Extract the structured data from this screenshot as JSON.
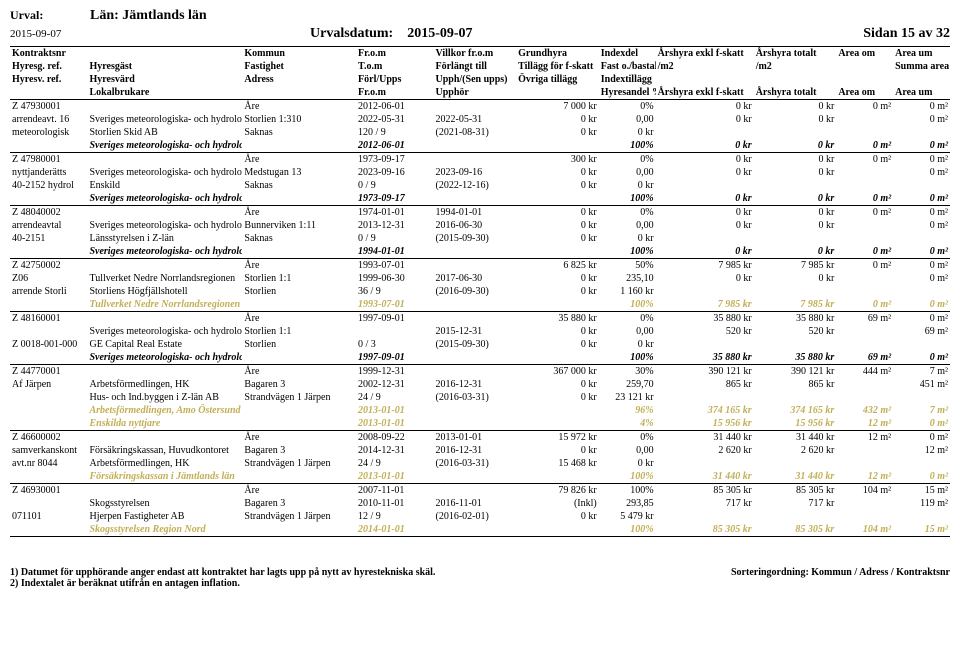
{
  "header": {
    "urval_label": "Urval:",
    "urval_value": "Län: Jämtlands län",
    "date_left": "2015-09-07",
    "urvalsdatum_label": "Urvalsdatum:",
    "urvalsdatum_value": "2015-09-07",
    "page_label": "Sidan 15 av 32"
  },
  "colwidths": [
    "75",
    "150",
    "110",
    "75",
    "80",
    "80",
    "55",
    "95",
    "80",
    "55",
    "55"
  ],
  "columns_row1": [
    "Kontraktsnr",
    "",
    "Kommun",
    "Fr.o.m",
    "Villkor fr.o.m",
    "Grundhyra",
    "Indexdel",
    "Årshyra exkl f-skatt",
    "Årshyra totalt",
    "Area om",
    "Area um"
  ],
  "columns_row2": [
    "Hyresg. ref.",
    "Hyresgäst",
    "Fastighet",
    "T.o.m",
    "Förlängt till",
    "Tillägg för f-skatt",
    "Fast o./bastal",
    "/m2",
    "/m2",
    "",
    "Summa area"
  ],
  "columns_row3": [
    "Hyresv. ref.",
    "Hyresvärd",
    "Adress",
    "Förl/Upps",
    "Upph/(Sen upps)",
    "Övriga tillägg",
    "Indextillägg",
    "",
    "",
    "",
    ""
  ],
  "columns_row4_italic": [
    "",
    "Lokalbrukare",
    "",
    "Fr.o.m",
    "Upphör",
    "",
    "Hyresandel %",
    "Årshyra exkl f-skatt",
    "Årshyra totalt",
    "Area om",
    "Area um"
  ],
  "num_cols": [
    5,
    6,
    7,
    8,
    9,
    10
  ],
  "groups": [
    {
      "rows": [
        [
          "Z 47930001",
          "",
          "Åre",
          "2012-06-01",
          "",
          "7 000 kr",
          "0%",
          "0 kr",
          "0 kr",
          "0 m²",
          "0 m²"
        ],
        [
          "arrendeavt. 16",
          "Sveriges meteorologiska- och hydrologisk",
          "Storlien 1:310",
          "2022-05-31",
          "2022-05-31",
          "0 kr",
          "0,00",
          "0 kr",
          "0 kr",
          "",
          "0 m²"
        ],
        [
          "meteorologisk",
          "Storlien Skid AB",
          "Saknas",
          "120 / 9",
          "(2021-08-31)",
          "0 kr",
          "0 kr",
          "",
          "",
          "",
          ""
        ]
      ],
      "summary": [
        "",
        "Sveriges meteorologiska- och hydrologiska institut",
        "",
        "2012-06-01",
        "",
        "",
        "100%",
        "0 kr",
        "0 kr",
        "0 m²",
        "0 m²"
      ]
    },
    {
      "rows": [
        [
          "Z 47980001",
          "",
          "Åre",
          "1973-09-17",
          "",
          "300 kr",
          "0%",
          "0 kr",
          "0 kr",
          "0 m²",
          "0 m²"
        ],
        [
          "nyttjanderätts",
          "Sveriges meteorologiska- och hydrologisk",
          "Medstugan 13",
          "2023-09-16",
          "2023-09-16",
          "0 kr",
          "0,00",
          "0 kr",
          "0 kr",
          "",
          "0 m²"
        ],
        [
          "40-2152 hydrol",
          "Enskild",
          "Saknas",
          "0 / 9",
          "(2022-12-16)",
          "0 kr",
          "0 kr",
          "",
          "",
          "",
          ""
        ]
      ],
      "summary": [
        "",
        "Sveriges meteorologiska- och hydrologiska institut",
        "",
        "1973-09-17",
        "",
        "",
        "100%",
        "0 kr",
        "0 kr",
        "0 m²",
        "0 m²"
      ]
    },
    {
      "rows": [
        [
          "Z 48040002",
          "",
          "Åre",
          "1974-01-01",
          "1994-01-01",
          "0 kr",
          "0%",
          "0 kr",
          "0 kr",
          "0 m²",
          "0 m²"
        ],
        [
          "arrendeavtal",
          "Sveriges meteorologiska- och hydrologisk",
          "Bunnerviken 1:11",
          "2013-12-31",
          "2016-06-30",
          "0 kr",
          "0,00",
          "0 kr",
          "0 kr",
          "",
          "0 m²"
        ],
        [
          "40-2151",
          "Länsstyrelsen i Z-län",
          "Saknas",
          "0 / 9",
          "(2015-09-30)",
          "0 kr",
          "0 kr",
          "",
          "",
          "",
          ""
        ]
      ],
      "summary": [
        "",
        "Sveriges meteorologiska- och hydrologiska institut",
        "",
        "1994-01-01",
        "",
        "",
        "100%",
        "0 kr",
        "0 kr",
        "0 m²",
        "0 m²"
      ]
    },
    {
      "rows": [
        [
          "Z 42750002",
          "",
          "Åre",
          "1993-07-01",
          "",
          "6 825 kr",
          "50%",
          "7 985 kr",
          "7 985 kr",
          "0 m²",
          "0 m²"
        ],
        [
          "Z06",
          "Tullverket Nedre Norrlandsregionen",
          "Storlien 1:1",
          "1999-06-30",
          "2017-06-30",
          "0 kr",
          "235,10",
          "0 kr",
          "0 kr",
          "",
          "0 m²"
        ],
        [
          "arrende Storli",
          "Storliens Högfjällshotell",
          "Storlien",
          "36 / 9",
          "(2016-09-30)",
          "0 kr",
          "1 160 kr",
          "",
          "",
          "",
          ""
        ]
      ],
      "pale_summary": [
        "",
        "Tullverket Nedre Norrlandsregionen",
        "",
        "1993-07-01",
        "",
        "",
        "100%",
        "7 985 kr",
        "7 985 kr",
        "0 m²",
        "0 m²"
      ]
    },
    {
      "rows": [
        [
          "Z 48160001",
          "",
          "Åre",
          "1997-09-01",
          "",
          "35 880 kr",
          "0%",
          "35 880 kr",
          "35 880 kr",
          "69 m²",
          "0 m²"
        ],
        [
          "",
          "Sveriges meteorologiska- och hydrologisk",
          "Storlien 1:1",
          "",
          "2015-12-31",
          "0 kr",
          "0,00",
          "520 kr",
          "520 kr",
          "",
          "69 m²"
        ],
        [
          "Z 0018-001-000",
          "GE Capital Real Estate",
          "Storlien",
          "0 / 3",
          "(2015-09-30)",
          "0 kr",
          "0 kr",
          "",
          "",
          "",
          ""
        ]
      ],
      "summary": [
        "",
        "Sveriges meteorologiska- och hydrologiska institut",
        "",
        "1997-09-01",
        "",
        "",
        "100%",
        "35 880 kr",
        "35 880 kr",
        "69 m²",
        "0 m²"
      ]
    },
    {
      "rows": [
        [
          "Z 44770001",
          "",
          "Åre",
          "1999-12-31",
          "",
          "367 000 kr",
          "30%",
          "390 121 kr",
          "390 121 kr",
          "444 m²",
          "7 m²"
        ],
        [
          "Af Järpen",
          "Arbetsförmedlingen, HK",
          "Bagaren 3",
          "2002-12-31",
          "2016-12-31",
          "0 kr",
          "259,70",
          "865 kr",
          "865 kr",
          "",
          "451 m²"
        ],
        [
          "",
          "Hus- och Ind.byggen i Z-län AB",
          "Strandvägen 1 Järpen",
          "24 / 9",
          "(2016-03-31)",
          "0 kr",
          "23 121 kr",
          "",
          "",
          "",
          ""
        ]
      ],
      "pale": [
        "",
        "Arbetsförmedlingen, Amo Östersund",
        "",
        "2013-01-01",
        "",
        "",
        "96%",
        "374 165 kr",
        "374 165 kr",
        "432 m²",
        "7 m²"
      ],
      "pale_summary": [
        "",
        "Enskilda nyttjare",
        "",
        "2013-01-01",
        "",
        "",
        "4%",
        "15 956 kr",
        "15 956 kr",
        "12 m²",
        "0 m²"
      ]
    },
    {
      "rows": [
        [
          "Z 46600002",
          "",
          "Åre",
          "2008-09-22",
          "2013-01-01",
          "15 972 kr",
          "0%",
          "31 440 kr",
          "31 440 kr",
          "12 m²",
          "0 m²"
        ],
        [
          "samverkanskont",
          "Försäkringskassan, Huvudkontoret",
          "Bagaren 3",
          "2014-12-31",
          "2016-12-31",
          "0 kr",
          "0,00",
          "2 620 kr",
          "2 620 kr",
          "",
          "12 m²"
        ],
        [
          "avt.nr 8044",
          "Arbetsförmedlingen, HK",
          "Strandvägen 1 Järpen",
          "24 / 9",
          "(2016-03-31)",
          "15 468 kr",
          "0 kr",
          "",
          "",
          "",
          ""
        ]
      ],
      "pale_summary": [
        "",
        "Försäkringskassan i Jämtlands län",
        "",
        "2013-01-01",
        "",
        "",
        "100%",
        "31 440 kr",
        "31 440 kr",
        "12 m²",
        "0 m²"
      ]
    },
    {
      "rows": [
        [
          "Z 46930001",
          "",
          "Åre",
          "2007-11-01",
          "",
          "79 826 kr",
          "100%",
          "85 305 kr",
          "85 305 kr",
          "104 m²",
          "15 m²"
        ],
        [
          "",
          "Skogsstyrelsen",
          "Bagaren 3",
          "2010-11-01",
          "2016-11-01",
          "(Inkl)",
          "293,85",
          "717 kr",
          "717 kr",
          "",
          "119 m²"
        ],
        [
          "071101",
          "Hjerpen Fastigheter AB",
          "Strandvägen 1 Järpen",
          "12 / 9",
          "(2016-02-01)",
          "0 kr",
          "5 479 kr",
          "",
          "",
          "",
          ""
        ]
      ],
      "pale_summary": [
        "",
        "Skogsstyrelsen Region Nord",
        "",
        "2014-01-01",
        "",
        "",
        "100%",
        "85 305 kr",
        "85 305 kr",
        "104 m²",
        "15 m²"
      ]
    }
  ],
  "footer": {
    "line1": "1) Datumet för upphörande anger endast att kontraktet har lagts upp på nytt av hyrestekniska skäl.",
    "line2": "2) Indextalet är beräknat utifrån en antagen inflation.",
    "right": "Sorteringordning: Kommun / Adress / Kontraktsnr"
  }
}
